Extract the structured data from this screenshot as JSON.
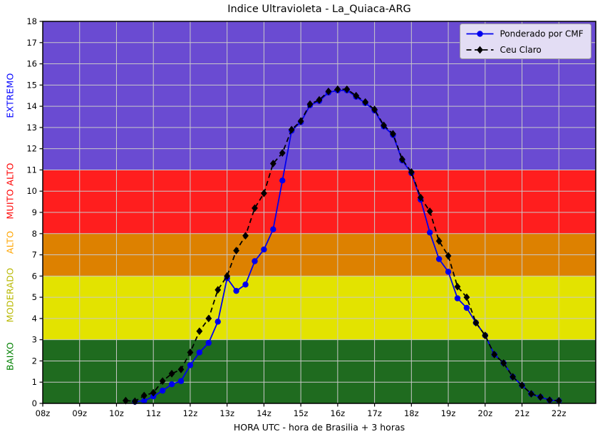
{
  "figure": {
    "title": "Indice Ultravioleta - La_Quiaca-ARG",
    "xlabel": "HORA UTC - hora de Brasilia + 3 horas",
    "background": "#ffffff"
  },
  "risk_bands": [
    {
      "name": "EXTREMO",
      "text_color": "#0000ff",
      "fill": "#6a4bd2",
      "from": 11,
      "to": 18,
      "label_center": 14.5
    },
    {
      "name": "MUITO ALTO",
      "text_color": "#ff0000",
      "fill": "#ff1e1e",
      "from": 8,
      "to": 11,
      "label_center": 10.0
    },
    {
      "name": "ALTO",
      "text_color": "#ffa500",
      "fill": "#dd8100",
      "from": 6,
      "to": 8,
      "label_center": 7.6
    },
    {
      "name": "MODERADO",
      "text_color": "#b8b800",
      "fill": "#e3e300",
      "from": 3,
      "to": 6,
      "label_center": 5.1
    },
    {
      "name": "BAIXO",
      "text_color": "#008000",
      "fill": "#1f6b1f",
      "from": 0,
      "to": 3,
      "label_center": 2.2
    }
  ],
  "legend": {
    "position": "upper right",
    "entries": [
      {
        "label": "Ponderado por CMF",
        "color": "#0000ee",
        "style": "solid",
        "marker": "circle"
      },
      {
        "label": "Ceu Claro",
        "color": "#000000",
        "style": "dashed",
        "marker": "diamond"
      }
    ]
  },
  "chart_data": {
    "type": "line",
    "title": "Indice Ultravioleta - La_Quiaca-ARG",
    "xlabel": "HORA UTC - hora de Brasilia + 3 horas",
    "ylabel": "",
    "xlim": [
      8,
      23
    ],
    "ylim": [
      0,
      18
    ],
    "grid": true,
    "grid_color": "#c8c8c8",
    "x_tick_hours": [
      8,
      9,
      10,
      11,
      12,
      13,
      14,
      15,
      16,
      17,
      18,
      19,
      20,
      21,
      22
    ],
    "x_tick_labels": [
      "08z",
      "09z",
      "10z",
      "11z",
      "12z",
      "13z",
      "14z",
      "15z",
      "16z",
      "17z",
      "18z",
      "19z",
      "20z",
      "21z",
      "22z"
    ],
    "y_ticks": [
      0,
      1,
      2,
      3,
      4,
      5,
      6,
      7,
      8,
      9,
      10,
      11,
      12,
      13,
      14,
      15,
      16,
      17,
      18
    ],
    "series": [
      {
        "name": "Ponderado por CMF",
        "color": "#0000ee",
        "line": "solid",
        "marker": "circle",
        "x": [
          10.5,
          10.75,
          11.0,
          11.25,
          11.5,
          11.75,
          12.0,
          12.25,
          12.5,
          12.75,
          13.0,
          13.25,
          13.5,
          13.75,
          14.0,
          14.25,
          14.5,
          14.75,
          15.0,
          15.25,
          15.5,
          15.75,
          16.0,
          16.25,
          16.5,
          16.75,
          17.0,
          17.25,
          17.5,
          17.75,
          18.0,
          18.25,
          18.5,
          18.75,
          19.0,
          19.25,
          19.5,
          19.75,
          20.0,
          20.25,
          20.5,
          20.75,
          21.0,
          21.25,
          21.5,
          21.75,
          22.0
        ],
        "y": [
          0.08,
          0.12,
          0.33,
          0.6,
          0.9,
          1.05,
          1.8,
          2.4,
          2.85,
          3.85,
          5.9,
          5.3,
          5.6,
          6.7,
          7.25,
          8.2,
          10.5,
          12.85,
          13.25,
          14.05,
          14.25,
          14.65,
          14.75,
          14.75,
          14.45,
          14.15,
          13.8,
          13.05,
          12.65,
          11.45,
          10.85,
          9.6,
          8.05,
          6.8,
          6.2,
          4.95,
          4.5,
          3.8,
          3.2,
          2.3,
          1.9,
          1.25,
          0.85,
          0.45,
          0.3,
          0.15,
          0.12
        ]
      },
      {
        "name": "Ceu Claro",
        "color": "#000000",
        "line": "dashed",
        "marker": "diamond",
        "x": [
          10.25,
          10.5,
          10.75,
          11.0,
          11.25,
          11.5,
          11.75,
          12.0,
          12.25,
          12.5,
          12.75,
          13.0,
          13.25,
          13.5,
          13.75,
          14.0,
          14.25,
          14.5,
          14.75,
          15.0,
          15.25,
          15.5,
          15.75,
          16.0,
          16.25,
          16.5,
          16.75,
          17.0,
          17.25,
          17.5,
          17.75,
          18.0,
          18.25,
          18.5,
          18.75,
          19.0,
          19.25,
          19.5,
          19.75,
          20.0,
          20.25,
          20.5,
          20.75,
          21.0,
          21.25,
          21.5,
          21.75,
          22.0
        ],
        "y": [
          0.13,
          0.1,
          0.37,
          0.5,
          1.05,
          1.4,
          1.6,
          2.4,
          3.4,
          4.0,
          5.35,
          6.0,
          7.2,
          7.9,
          9.2,
          9.9,
          11.3,
          11.8,
          12.9,
          13.3,
          14.1,
          14.3,
          14.7,
          14.8,
          14.8,
          14.5,
          14.2,
          13.85,
          13.1,
          12.7,
          11.5,
          10.9,
          9.7,
          9.05,
          7.65,
          6.95,
          5.5,
          5.0,
          3.8,
          3.2,
          2.3,
          1.9,
          1.25,
          0.85,
          0.45,
          0.3,
          0.15,
          0.12
        ]
      }
    ]
  }
}
